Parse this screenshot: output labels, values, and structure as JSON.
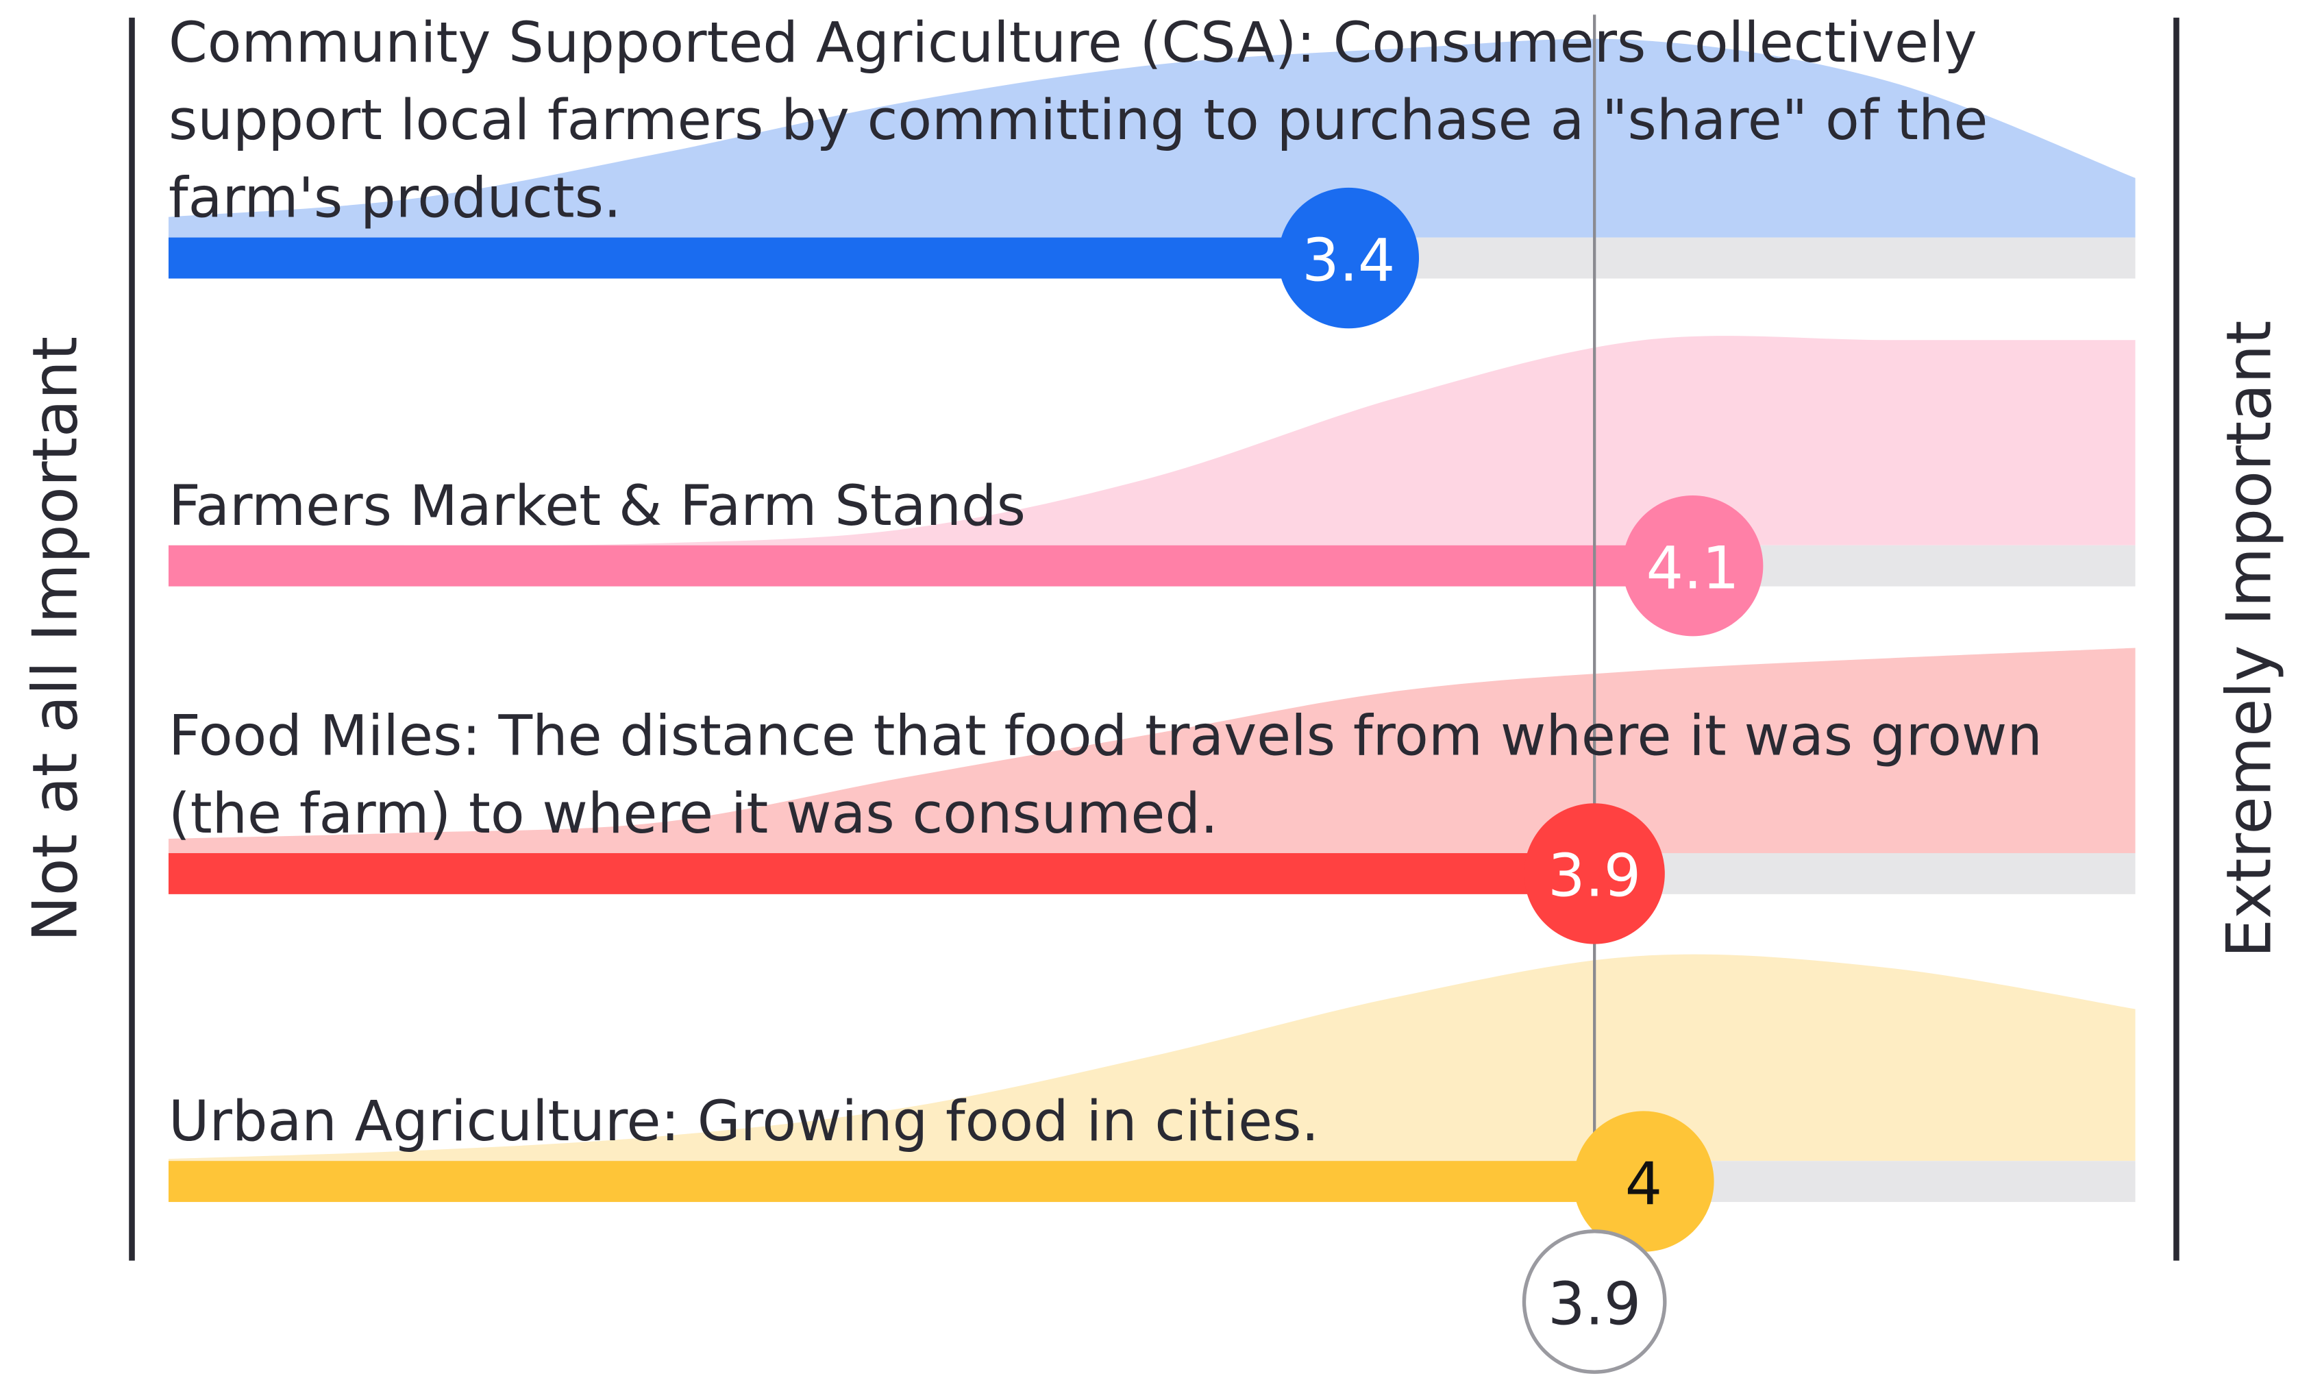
{
  "chart_data": {
    "type": "bar",
    "orientation": "horizontal",
    "categories": [
      "Community Supported Agriculture (CSA): Consumers collectively support local farmers by committing to purchase a \"share\" of the farm's products.",
      "Farmers Market & Farm Stands",
      "Food Miles: The distance that food travels from where it was grown (the farm) to where it was consumed.",
      "Urban Agriculture: Growing food in cities."
    ],
    "values": [
      3.4,
      4.1,
      3.9,
      4
    ],
    "colors": [
      "#1a6cf0",
      "#ff80a7",
      "#ff4141",
      "#fec538"
    ],
    "area_colors": [
      "#b9d1f9",
      "#fed6e3",
      "#fdc5c5",
      "#feedc3"
    ],
    "value_label_colors": [
      "#ffffff",
      "#ffffff",
      "#ffffff",
      "#111111"
    ],
    "track_color": "#e6e6e8",
    "xlim": [
      1,
      5
    ],
    "distribution_x": [
      1,
      1.5,
      2,
      2.5,
      3,
      3.5,
      4,
      4.5,
      5
    ],
    "distributions": [
      [
        0.1,
        0.19,
        0.41,
        0.66,
        0.84,
        0.92,
        0.96,
        0.76,
        0.29
      ],
      [
        0,
        0,
        0.01,
        0.08,
        0.33,
        0.72,
        1,
        1,
        1
      ],
      [
        0.07,
        0.1,
        0.15,
        0.37,
        0.58,
        0.79,
        0.89,
        0.95,
        1
      ],
      [
        0.01,
        0.05,
        0.12,
        0.26,
        0.51,
        0.8,
        1,
        0.94,
        0.74
      ]
    ],
    "average": 3.9,
    "left_label": "Not at all Important",
    "right_label": "Extremely Important"
  }
}
